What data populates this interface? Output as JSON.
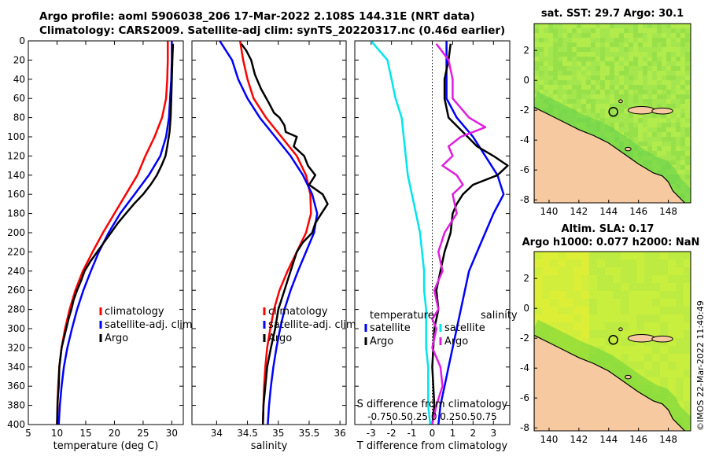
{
  "header": {
    "line1": "Argo profile: aoml 5906038_206 17-Mar-2022 2.108S 144.31E (NRT data)",
    "line2": "Climatology: CARS2009. Satellite-adj clim: synTS_20220317.nc (0.46d earlier)"
  },
  "watermark": "©IMOS 22-Mar-2022 11:40:49",
  "colors": {
    "red": "#ff0000",
    "blue": "#0000ff",
    "black": "#000000",
    "cyan": "#00e5ee",
    "magenta": "#e01ce0",
    "land": "#f7c9a0",
    "ocean_map": "#b8ee40"
  },
  "chart_data": [
    {
      "type": "line",
      "id": "temperature-profile",
      "xlabel": "temperature (deg C)",
      "xlim": [
        5,
        32
      ],
      "xticks": [
        5,
        10,
        15,
        20,
        25,
        30
      ],
      "ylim": [
        0,
        400
      ],
      "yticks": [
        0,
        20,
        40,
        60,
        80,
        100,
        120,
        140,
        160,
        180,
        200,
        220,
        240,
        260,
        280,
        300,
        320,
        340,
        360,
        380,
        400
      ],
      "legend": [
        "climatology",
        "satellite-adj. clim",
        "Argo"
      ],
      "series": [
        {
          "name": "climatology",
          "color": "red",
          "x": [
            29.3,
            29.3,
            29.2,
            29.0,
            28.3,
            27.0,
            25.4,
            24.0,
            22.0,
            20.0,
            18.0,
            16.2,
            14.5,
            13.2,
            12.2,
            11.4,
            10.8,
            10.4,
            10.2,
            10.1,
            10.0
          ],
          "y": [
            0,
            20,
            40,
            60,
            80,
            100,
            120,
            140,
            160,
            180,
            200,
            220,
            240,
            260,
            280,
            300,
            320,
            340,
            360,
            380,
            400
          ]
        },
        {
          "name": "satellite-adj. clim",
          "color": "blue",
          "x": [
            30.0,
            30.0,
            29.9,
            29.7,
            29.5,
            29.0,
            28.0,
            26.0,
            23.5,
            21.0,
            19.0,
            17.3,
            15.9,
            14.6,
            13.5,
            12.6,
            11.8,
            11.2,
            10.8,
            10.5,
            10.3
          ],
          "y": [
            0,
            20,
            40,
            60,
            80,
            100,
            120,
            140,
            160,
            180,
            200,
            220,
            240,
            260,
            280,
            300,
            320,
            340,
            360,
            380,
            400
          ]
        },
        {
          "name": "Argo",
          "color": "black",
          "x": [
            30.2,
            30.1,
            30.0,
            29.9,
            29.8,
            29.6,
            29.2,
            28.9,
            28.2,
            27.4,
            26.3,
            25.0,
            23.4,
            22.0,
            20.6,
            19.4,
            18.2,
            17.0,
            15.8,
            14.8,
            14.2,
            13.5,
            12.9,
            12.5,
            12.0,
            11.6,
            11.2,
            10.8,
            10.4,
            10.3,
            10.1,
            10.0
          ],
          "y": [
            3,
            20,
            40,
            60,
            80,
            95,
            110,
            120,
            130,
            140,
            150,
            160,
            170,
            180,
            190,
            200,
            210,
            220,
            230,
            240,
            250,
            260,
            270,
            280,
            290,
            300,
            310,
            320,
            340,
            360,
            375,
            400
          ]
        }
      ]
    },
    {
      "type": "line",
      "id": "salinity-profile",
      "xlabel": "salinity",
      "xlim": [
        33.6,
        36.1
      ],
      "xticks": [
        34,
        34.5,
        35,
        35.5,
        36
      ],
      "xticklabels": [
        "34",
        "34.5",
        "35",
        "35.5",
        "36"
      ],
      "ylim": [
        0,
        400
      ],
      "legend": [
        "climatology",
        "satellite-adj. clim",
        "Argo"
      ],
      "series": [
        {
          "name": "climatology",
          "color": "red",
          "x": [
            34.38,
            34.43,
            34.5,
            34.6,
            34.8,
            35.05,
            35.3,
            35.45,
            35.52,
            35.53,
            35.45,
            35.3,
            35.15,
            35.02,
            34.93,
            34.87,
            34.82,
            34.79,
            34.77,
            34.76,
            34.75
          ],
          "y": [
            0,
            20,
            40,
            60,
            80,
            100,
            120,
            140,
            160,
            180,
            200,
            220,
            240,
            260,
            280,
            300,
            320,
            340,
            360,
            380,
            400
          ]
        },
        {
          "name": "satellite-adj. clim",
          "color": "blue",
          "x": [
            34.05,
            34.25,
            34.35,
            34.5,
            34.7,
            34.95,
            35.2,
            35.4,
            35.55,
            35.63,
            35.58,
            35.45,
            35.32,
            35.2,
            35.1,
            35.03,
            34.97,
            34.92,
            34.88,
            34.85,
            34.83
          ],
          "y": [
            0,
            20,
            40,
            60,
            80,
            100,
            120,
            140,
            160,
            180,
            200,
            220,
            240,
            260,
            280,
            300,
            320,
            340,
            360,
            380,
            400
          ]
        },
        {
          "name": "Argo",
          "color": "black",
          "x": [
            34.4,
            34.48,
            34.56,
            34.62,
            34.72,
            34.85,
            34.93,
            35.02,
            35.1,
            35.12,
            35.3,
            35.25,
            35.42,
            35.48,
            35.6,
            35.5,
            35.72,
            35.8,
            35.7,
            35.6,
            35.55,
            35.4,
            35.3,
            35.2,
            35.1,
            35.0,
            34.95,
            34.88,
            34.82,
            34.79,
            34.76,
            34.75
          ],
          "y": [
            3,
            10,
            20,
            35,
            50,
            65,
            75,
            80,
            88,
            95,
            100,
            110,
            120,
            130,
            140,
            150,
            160,
            170,
            180,
            190,
            200,
            210,
            220,
            240,
            260,
            280,
            300,
            320,
            340,
            360,
            380,
            400
          ]
        }
      ]
    },
    {
      "type": "line",
      "id": "difference-profile",
      "xlabel": "T difference from climatology",
      "xlim": [
        -3.8,
        3.8
      ],
      "xticks": [
        -3,
        -2,
        -1,
        0,
        1,
        2,
        3
      ],
      "xticklabels": [
        "-3",
        "-2",
        "-1",
        "0",
        "1",
        "2",
        "3"
      ],
      "top_axis_label": "S difference from climatology",
      "top_ticklabels": "-0.750.50.25  0  0.250.50.75",
      "ylim": [
        0,
        400
      ],
      "legend_left_title": "temperature",
      "legend_right_title": "salinity",
      "legend_left": [
        "satellite",
        "Argo"
      ],
      "legend_right": [
        "satellite",
        "Argo"
      ],
      "series": [
        {
          "name": "T satellite",
          "color": "blue",
          "x": [
            0.7,
            0.7,
            0.7,
            0.7,
            1.2,
            2.0,
            2.6,
            3.2,
            3.5,
            3.0,
            2.6,
            2.2,
            1.8,
            1.6,
            1.4,
            1.2,
            1.0,
            0.8,
            0.6,
            0.4,
            0.3
          ],
          "y": [
            0,
            20,
            40,
            60,
            80,
            100,
            120,
            140,
            160,
            180,
            200,
            220,
            240,
            260,
            280,
            300,
            320,
            340,
            360,
            380,
            400
          ]
        },
        {
          "name": "T Argo",
          "color": "black",
          "x": [
            0.9,
            0.8,
            0.6,
            0.6,
            0.8,
            1.5,
            2.2,
            3.0,
            3.7,
            3.2,
            2.0,
            1.5,
            1.2,
            1.0,
            0.9,
            0.6,
            0.4,
            0.2,
            0.3,
            0.1,
            0.0,
            0.1,
            0.0
          ],
          "y": [
            3,
            20,
            40,
            60,
            80,
            95,
            110,
            120,
            130,
            140,
            150,
            160,
            170,
            180,
            200,
            220,
            240,
            260,
            280,
            300,
            340,
            380,
            400
          ]
        },
        {
          "name": "S satellite",
          "color": "cyan",
          "x": [
            -3.0,
            -2.2,
            -2.0,
            -1.8,
            -1.5,
            -1.4,
            -1.3,
            -1.2,
            -1.0,
            -0.8,
            -0.6,
            -0.5,
            -0.4,
            -0.4,
            -0.3,
            -0.3,
            -0.3,
            -0.2,
            -0.2,
            -0.2,
            -0.1
          ],
          "y": [
            0,
            20,
            40,
            60,
            80,
            100,
            120,
            140,
            160,
            180,
            200,
            220,
            240,
            260,
            280,
            300,
            320,
            340,
            360,
            380,
            400
          ]
        },
        {
          "name": "S Argo",
          "color": "magenta",
          "x": [
            0.2,
            0.8,
            1.0,
            1.0,
            1.8,
            2.6,
            1.4,
            0.8,
            1.0,
            0.5,
            1.2,
            1.5,
            1.0,
            1.2,
            0.6,
            0.3,
            0.5,
            0.1,
            0.3,
            0.0,
            0.2,
            0.0,
            0.4,
            0.5,
            0.2,
            0.0
          ],
          "y": [
            3,
            20,
            40,
            60,
            80,
            90,
            100,
            110,
            120,
            130,
            140,
            150,
            160,
            180,
            200,
            220,
            240,
            260,
            280,
            290,
            300,
            320,
            340,
            360,
            380,
            400
          ]
        }
      ]
    },
    {
      "type": "heatmap",
      "id": "sst-map",
      "title": "sat. SST: 29.7 Argo: 30.1",
      "xticks": [
        "140",
        "142",
        "144",
        "146",
        "148"
      ],
      "yticks": [
        "2",
        "0",
        "-2",
        "-4",
        "-6",
        "-8"
      ],
      "xlim": [
        139,
        149.5
      ],
      "ylim": [
        -8.2,
        3.8
      ],
      "marker": {
        "lon": 144.31,
        "lat": -2.108
      }
    },
    {
      "type": "heatmap",
      "id": "sla-map",
      "title1": "Altim. SLA: 0.17",
      "title2": "Argo h1000: 0.077 h2000: NaN",
      "xticks": [
        "140",
        "142",
        "144",
        "146",
        "148"
      ],
      "yticks": [
        "2",
        "0",
        "-2",
        "-4",
        "-6",
        "-8"
      ],
      "xlim": [
        139,
        149.5
      ],
      "ylim": [
        -8.2,
        3.8
      ],
      "marker": {
        "lon": 144.31,
        "lat": -2.108
      }
    }
  ]
}
